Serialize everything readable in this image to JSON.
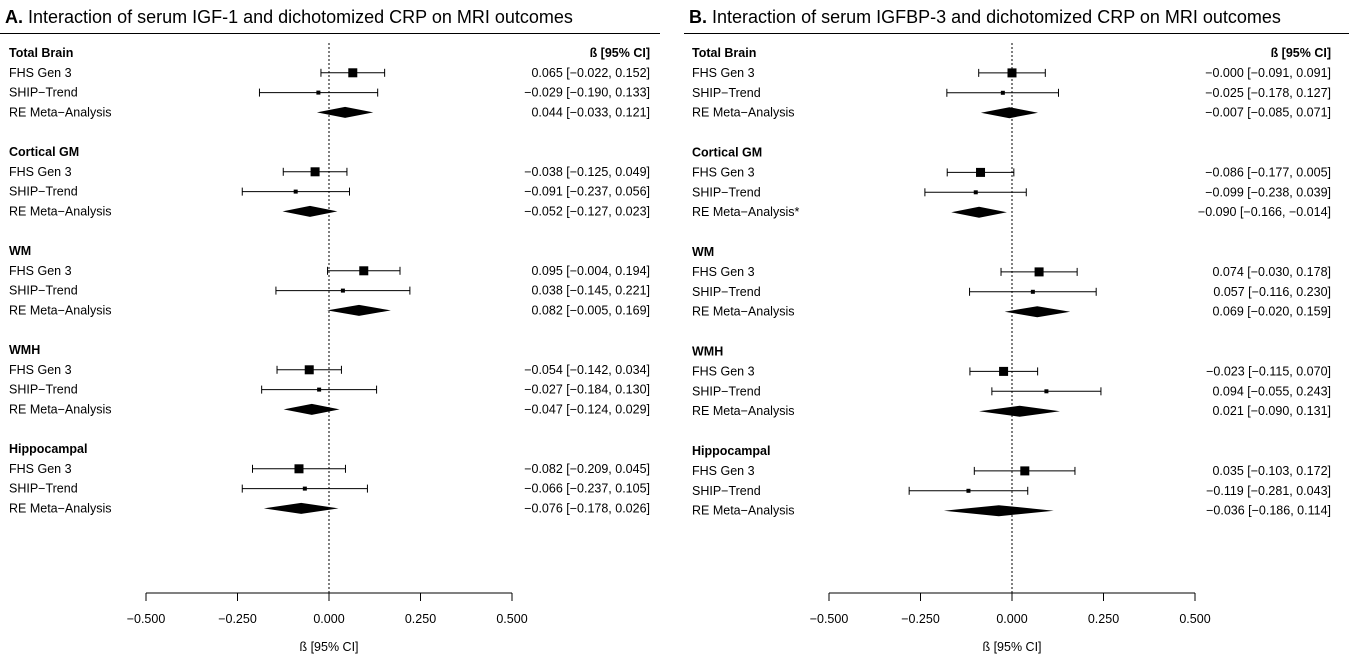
{
  "chart_data": [
    {
      "type": "forest",
      "panel_letter": "A.",
      "title": "Interaction of serum IGF-1 and dichotomized CRP on MRI outcomes",
      "column_header": "ß [95% CI]",
      "xlabel": "ß [95% CI]",
      "xlim": [
        -0.5,
        0.5
      ],
      "xticks": [
        "-0.500",
        "-0.250",
        "0.000",
        "0.250",
        "0.500"
      ],
      "reference_line": 0,
      "groups": [
        {
          "name": "Total Brain",
          "rows": [
            {
              "label": "FHS Gen 3",
              "est": 0.065,
              "lo": -0.022,
              "hi": 0.152,
              "ci_text": "0.065 [−0.022, 0.152]"
            },
            {
              "label": "SHIP−Trend",
              "est": -0.029,
              "lo": -0.19,
              "hi": 0.133,
              "ci_text": "−0.029 [−0.190, 0.133]"
            },
            {
              "label": "RE Meta−Analysis",
              "est": 0.044,
              "lo": -0.033,
              "hi": 0.121,
              "ci_text": "0.044 [−0.033, 0.121]",
              "summary": true
            }
          ]
        },
        {
          "name": "Cortical GM",
          "rows": [
            {
              "label": "FHS Gen 3",
              "est": -0.038,
              "lo": -0.125,
              "hi": 0.049,
              "ci_text": "−0.038 [−0.125, 0.049]"
            },
            {
              "label": "SHIP−Trend",
              "est": -0.091,
              "lo": -0.237,
              "hi": 0.056,
              "ci_text": "−0.091 [−0.237, 0.056]"
            },
            {
              "label": "RE Meta−Analysis",
              "est": -0.052,
              "lo": -0.127,
              "hi": 0.023,
              "ci_text": "−0.052 [−0.127, 0.023]",
              "summary": true
            }
          ]
        },
        {
          "name": "WM",
          "rows": [
            {
              "label": "FHS Gen 3",
              "est": 0.095,
              "lo": -0.004,
              "hi": 0.194,
              "ci_text": "0.095 [−0.004, 0.194]"
            },
            {
              "label": "SHIP−Trend",
              "est": 0.038,
              "lo": -0.145,
              "hi": 0.221,
              "ci_text": "0.038 [−0.145, 0.221]"
            },
            {
              "label": "RE Meta−Analysis",
              "est": 0.082,
              "lo": -0.005,
              "hi": 0.169,
              "ci_text": "0.082 [−0.005, 0.169]",
              "summary": true
            }
          ]
        },
        {
          "name": "WMH",
          "rows": [
            {
              "label": "FHS Gen 3",
              "est": -0.054,
              "lo": -0.142,
              "hi": 0.034,
              "ci_text": "−0.054 [−0.142, 0.034]"
            },
            {
              "label": "SHIP−Trend",
              "est": -0.027,
              "lo": -0.184,
              "hi": 0.13,
              "ci_text": "−0.027 [−0.184, 0.130]"
            },
            {
              "label": "RE Meta−Analysis",
              "est": -0.047,
              "lo": -0.124,
              "hi": 0.029,
              "ci_text": "−0.047 [−0.124, 0.029]",
              "summary": true
            }
          ]
        },
        {
          "name": "Hippocampal",
          "rows": [
            {
              "label": "FHS Gen 3",
              "est": -0.082,
              "lo": -0.209,
              "hi": 0.045,
              "ci_text": "−0.082 [−0.209, 0.045]"
            },
            {
              "label": "SHIP−Trend",
              "est": -0.066,
              "lo": -0.237,
              "hi": 0.105,
              "ci_text": "−0.066 [−0.237, 0.105]"
            },
            {
              "label": "RE Meta−Analysis",
              "est": -0.076,
              "lo": -0.178,
              "hi": 0.026,
              "ci_text": "−0.076 [−0.178, 0.026]",
              "summary": true
            }
          ]
        }
      ]
    },
    {
      "type": "forest",
      "panel_letter": "B.",
      "title": "Interaction of serum IGFBP-3 and dichotomized CRP on MRI outcomes",
      "column_header": "ß [95% CI]",
      "xlabel": "ß [95% CI]",
      "xlim": [
        -0.5,
        0.5
      ],
      "xticks": [
        "-0.500",
        "-0.250",
        "0.000",
        "0.250",
        "0.500"
      ],
      "reference_line": 0,
      "groups": [
        {
          "name": "Total Brain",
          "rows": [
            {
              "label": "FHS Gen 3",
              "est": 0.0,
              "lo": -0.091,
              "hi": 0.091,
              "ci_text": "−0.000 [−0.091, 0.091]"
            },
            {
              "label": "SHIP−Trend",
              "est": -0.025,
              "lo": -0.178,
              "hi": 0.127,
              "ci_text": "−0.025 [−0.178, 0.127]"
            },
            {
              "label": "RE Meta−Analysis",
              "est": -0.007,
              "lo": -0.085,
              "hi": 0.071,
              "ci_text": "−0.007 [−0.085, 0.071]",
              "summary": true
            }
          ]
        },
        {
          "name": "Cortical GM",
          "rows": [
            {
              "label": "FHS Gen 3",
              "est": -0.086,
              "lo": -0.177,
              "hi": 0.005,
              "ci_text": "−0.086 [−0.177, 0.005]"
            },
            {
              "label": "SHIP−Trend",
              "est": -0.099,
              "lo": -0.238,
              "hi": 0.039,
              "ci_text": "−0.099 [−0.238, 0.039]"
            },
            {
              "label": "RE Meta−Analysis*",
              "est": -0.09,
              "lo": -0.166,
              "hi": -0.014,
              "ci_text": "−0.090 [−0.166, −0.014]",
              "summary": true
            }
          ]
        },
        {
          "name": "WM",
          "rows": [
            {
              "label": "FHS Gen 3",
              "est": 0.074,
              "lo": -0.03,
              "hi": 0.178,
              "ci_text": "0.074 [−0.030, 0.178]"
            },
            {
              "label": "SHIP−Trend",
              "est": 0.057,
              "lo": -0.116,
              "hi": 0.23,
              "ci_text": "0.057 [−0.116, 0.230]"
            },
            {
              "label": "RE Meta−Analysis",
              "est": 0.069,
              "lo": -0.02,
              "hi": 0.159,
              "ci_text": "0.069 [−0.020, 0.159]",
              "summary": true
            }
          ]
        },
        {
          "name": "WMH",
          "rows": [
            {
              "label": "FHS Gen 3",
              "est": -0.023,
              "lo": -0.115,
              "hi": 0.07,
              "ci_text": "−0.023 [−0.115, 0.070]"
            },
            {
              "label": "SHIP−Trend",
              "est": 0.094,
              "lo": -0.055,
              "hi": 0.243,
              "ci_text": "0.094 [−0.055, 0.243]"
            },
            {
              "label": "RE Meta−Analysis",
              "est": 0.021,
              "lo": -0.09,
              "hi": 0.131,
              "ci_text": "0.021 [−0.090, 0.131]",
              "summary": true
            }
          ]
        },
        {
          "name": "Hippocampal",
          "rows": [
            {
              "label": "FHS Gen 3",
              "est": 0.035,
              "lo": -0.103,
              "hi": 0.172,
              "ci_text": "0.035 [−0.103, 0.172]"
            },
            {
              "label": "SHIP−Trend",
              "est": -0.119,
              "lo": -0.281,
              "hi": 0.043,
              "ci_text": "−0.119 [−0.281, 0.043]"
            },
            {
              "label": "RE Meta−Analysis",
              "est": -0.036,
              "lo": -0.186,
              "hi": 0.114,
              "ci_text": "−0.036 [−0.186, 0.114]",
              "summary": true
            }
          ]
        }
      ]
    }
  ]
}
